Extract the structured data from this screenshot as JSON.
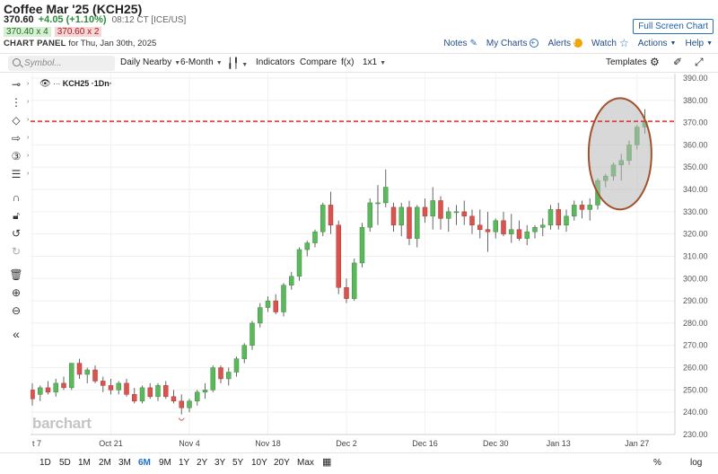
{
  "header": {
    "title": "Coffee Mar '25 (KCH25)",
    "last": "370.60",
    "change": "+4.05 (+1.10%)",
    "time": "08:12 CT [ICE/US]",
    "bid": "370.40 x 4",
    "ask": "370.60 x 2",
    "panel_label": "CHART PANEL",
    "panel_date": "for Thu, Jan 30th, 2025",
    "full_screen": "Full Screen Chart",
    "links": {
      "notes": "Notes",
      "my_charts": "My Charts",
      "alerts": "Alerts",
      "watch": "Watch",
      "actions": "Actions",
      "help": "Help"
    }
  },
  "toolbar": {
    "symbol_placeholder": "Symbol...",
    "interval": "Daily Nearby",
    "period": "6-Month",
    "indicators": "Indicators",
    "compare": "Compare",
    "fx": "f(x)",
    "layout": "1x1",
    "templates": "Templates"
  },
  "rail_icons": [
    "crosshair-icon",
    "trendline-icon",
    "shape-icon",
    "arrow-icon",
    "counter-icon",
    "fib-icon",
    "magnet-icon",
    "lock-icon",
    "undo-icon",
    "redo-icon",
    "trash-icon",
    "zoom-in-icon",
    "zoom-out-icon",
    "collapse-icon"
  ],
  "ranges": [
    "1D",
    "5D",
    "1M",
    "2M",
    "3M",
    "6M",
    "9M",
    "1Y",
    "2Y",
    "3Y",
    "5Y",
    "10Y",
    "20Y",
    "Max"
  ],
  "active_range": "6M",
  "bottom_right": {
    "percent": "%",
    "log": "log"
  },
  "watermark": "barchart",
  "legend_label": "KCH25 ·1Dn·",
  "colors": {
    "up": "#5cb85c",
    "down": "#d9534f",
    "price_line": "#d9302c",
    "price_tag": "#3f9a3f",
    "ellipse_fill": "#b8b8b8",
    "ellipse_stroke": "#a0522d"
  },
  "chart_data": {
    "type": "candlestick",
    "ylim": [
      230,
      392
    ],
    "yticks": [
      230,
      240,
      250,
      260,
      270,
      280,
      290,
      300,
      310,
      320,
      330,
      340,
      350,
      360,
      370,
      380,
      390
    ],
    "x_labels": [
      {
        "label": "t 7",
        "index": 0
      },
      {
        "label": "Oct 21",
        "index": 10
      },
      {
        "label": "Nov 4",
        "index": 20
      },
      {
        "label": "Nov 18",
        "index": 30
      },
      {
        "label": "Dec 2",
        "index": 40
      },
      {
        "label": "Dec 16",
        "index": 50
      },
      {
        "label": "Dec 30",
        "index": 59
      },
      {
        "label": "Jan 13",
        "index": 67
      },
      {
        "label": "Jan 27",
        "index": 77
      }
    ],
    "last_price": 370.6,
    "last_price_label": "370.60",
    "grid": true,
    "ohlc": [
      [
        250,
        253,
        243,
        246
      ],
      [
        248,
        252,
        245,
        251
      ],
      [
        251,
        254,
        248,
        249
      ],
      [
        249,
        255,
        247,
        253
      ],
      [
        253,
        256,
        250,
        251
      ],
      [
        251,
        262,
        250,
        262
      ],
      [
        262,
        264,
        255,
        257
      ],
      [
        257,
        260,
        253,
        259
      ],
      [
        259,
        261,
        253,
        254
      ],
      [
        254,
        256,
        249,
        252
      ],
      [
        252,
        255,
        248,
        250
      ],
      [
        250,
        254,
        248,
        253
      ],
      [
        253,
        255,
        247,
        248
      ],
      [
        248,
        251,
        244,
        245
      ],
      [
        245,
        252,
        244,
        251
      ],
      [
        251,
        253,
        246,
        247
      ],
      [
        247,
        253,
        245,
        252
      ],
      [
        252,
        254,
        246,
        247
      ],
      [
        247,
        250,
        244,
        245
      ],
      [
        245,
        248,
        239,
        242
      ],
      [
        242,
        246,
        240,
        245
      ],
      [
        245,
        250,
        243,
        249
      ],
      [
        249,
        253,
        246,
        250
      ],
      [
        250,
        261,
        249,
        260
      ],
      [
        260,
        261,
        253,
        255
      ],
      [
        255,
        260,
        252,
        258
      ],
      [
        258,
        265,
        256,
        264
      ],
      [
        264,
        271,
        262,
        270
      ],
      [
        270,
        281,
        268,
        280
      ],
      [
        280,
        289,
        278,
        287
      ],
      [
        287,
        292,
        285,
        290
      ],
      [
        290,
        293,
        284,
        285
      ],
      [
        285,
        298,
        283,
        297
      ],
      [
        297,
        303,
        295,
        301
      ],
      [
        301,
        314,
        299,
        313
      ],
      [
        313,
        317,
        310,
        316
      ],
      [
        316,
        322,
        314,
        321
      ],
      [
        321,
        334,
        319,
        333
      ],
      [
        333,
        339,
        320,
        324
      ],
      [
        324,
        326,
        293,
        296
      ],
      [
        296,
        300,
        289,
        291
      ],
      [
        291,
        309,
        290,
        307
      ],
      [
        307,
        325,
        305,
        323
      ],
      [
        323,
        336,
        321,
        334
      ],
      [
        334,
        342,
        324,
        334
      ],
      [
        334,
        349,
        332,
        341
      ],
      [
        332,
        334,
        321,
        324
      ],
      [
        324,
        334,
        319,
        332
      ],
      [
        332,
        335,
        315,
        318
      ],
      [
        318,
        333,
        314,
        332
      ],
      [
        332,
        336,
        325,
        328
      ],
      [
        328,
        341,
        322,
        335
      ],
      [
        335,
        337,
        322,
        327
      ],
      [
        327,
        332,
        321,
        330
      ],
      [
        330,
        333,
        324,
        330
      ],
      [
        330,
        335,
        324,
        328
      ],
      [
        328,
        331,
        320,
        324
      ],
      [
        324,
        331,
        318,
        322
      ],
      [
        322,
        330,
        312,
        321
      ],
      [
        321,
        327,
        318,
        326
      ],
      [
        326,
        330,
        319,
        320
      ],
      [
        320,
        329,
        316,
        322
      ],
      [
        322,
        326,
        317,
        318
      ],
      [
        318,
        324,
        315,
        321
      ],
      [
        321,
        324,
        318,
        323
      ],
      [
        323,
        327,
        319,
        324
      ],
      [
        324,
        333,
        322,
        331
      ],
      [
        331,
        334,
        322,
        324
      ],
      [
        324,
        331,
        321,
        328
      ],
      [
        328,
        335,
        326,
        333
      ],
      [
        333,
        335,
        327,
        331
      ],
      [
        331,
        336,
        326,
        333
      ],
      [
        333,
        345,
        331,
        344
      ],
      [
        344,
        347,
        341,
        346
      ],
      [
        346,
        352,
        344,
        351
      ],
      [
        351,
        356,
        344,
        353
      ],
      [
        353,
        362,
        351,
        360
      ],
      [
        360,
        369,
        358,
        368
      ],
      [
        368,
        376,
        365,
        370.6
      ]
    ]
  }
}
